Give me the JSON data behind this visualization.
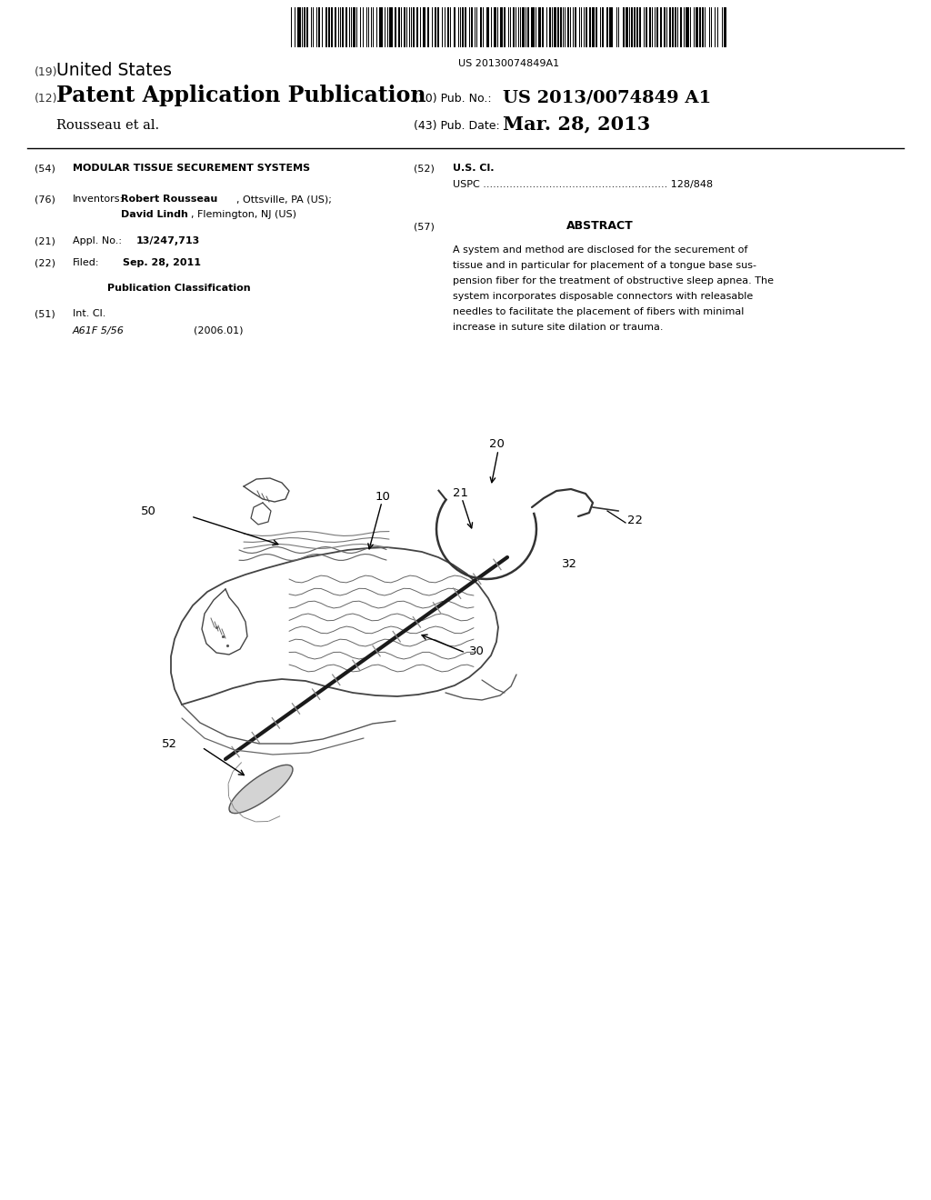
{
  "bg_color": "#ffffff",
  "barcode_number": "US 20130074849A1",
  "h19_pre": "(19)",
  "h19_text": " United States",
  "h12_pre": "(12)",
  "h12_text": " Patent Application Publication",
  "h10_label": "(10) Pub. No.:",
  "h10_val": " US 2013/0074849 A1",
  "h_author": "    Rousseau et al.",
  "h43_label": "(43) Pub. Date:",
  "h43_val": "    Mar. 28, 2013",
  "f54_num": "(54)",
  "f54_text": "MODULAR TISSUE SECUREMENT SYSTEMS",
  "f52_num": "(52)",
  "f52_text": "U.S. Cl.",
  "uspc_text": "USPC ........................................................ 128/848",
  "f76_num": "(76)",
  "f76_label": "Inventors:",
  "f76_line1_bold": "Robert Rousseau",
  "f76_line1_rest": ", Ottsville, PA (US);",
  "f76_line2_bold": "David Lindh",
  "f76_line2_rest": ", Flemington, NJ (US)",
  "f57_num": "(57)",
  "f57_title": "ABSTRACT",
  "abs_line1": "A system and method are disclosed for the securement of",
  "abs_line2": "tissue and in particular for placement of a tongue base sus-",
  "abs_line3": "pension fiber for the treatment of obstructive sleep apnea. The",
  "abs_line4": "system incorporates disposable connectors with releasable",
  "abs_line5": "needles to facilitate the placement of fibers with minimal",
  "abs_line6": "increase in suture site dilation or trauma.",
  "f21_num": "(21)",
  "f21_label": "Appl. No.:",
  "f21_val": "13/247,713",
  "f22_num": "(22)",
  "f22_label": "Filed:",
  "f22_val": "Sep. 28, 2011",
  "pub_class": "Publication Classification",
  "f51_num": "(51)",
  "f51_label": "Int. Cl.",
  "f51_val1": "A61F 5/56",
  "f51_val2": "(2006.01)"
}
